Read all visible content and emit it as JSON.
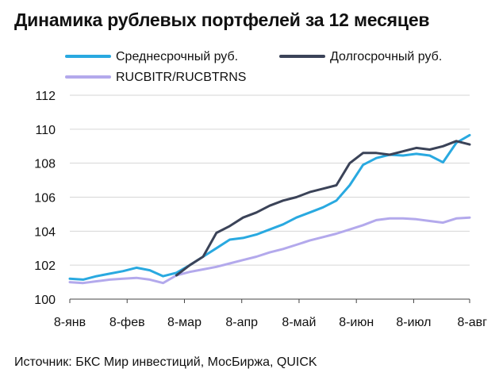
{
  "title": "Динамика рублевых портфелей за 12 месяцев",
  "source": "Источник: БКС Мир инвестиций, МосБиржа, QUICK",
  "chart_data": {
    "type": "line",
    "title": "Динамика рублевых портфелей за 12 месяцев",
    "xlabel": "",
    "ylabel": "",
    "ylim": [
      100,
      112
    ],
    "yticks": [
      100,
      102,
      104,
      106,
      108,
      110,
      112
    ],
    "xlim": [
      0,
      30
    ],
    "x_tick_positions": [
      0,
      4.3,
      8.6,
      12.9,
      17.2,
      21.5,
      25.8,
      30
    ],
    "x_tick_labels": [
      "8-янв",
      "8-фев",
      "8-мар",
      "8-апр",
      "8-май",
      "8-июн",
      "8-июл",
      "8-авг"
    ],
    "grid": "horizontal",
    "legend_position": "top",
    "series": [
      {
        "name": "Среднесрочный руб.",
        "color": "#29a9e0",
        "x": [
          0,
          1,
          2,
          3,
          4,
          5,
          6,
          7,
          8,
          9,
          10,
          11,
          12,
          13,
          14,
          15,
          16,
          17,
          18,
          19,
          20,
          21,
          22,
          23,
          24,
          25,
          26,
          27,
          28,
          29,
          30
        ],
        "values": [
          101.2,
          101.15,
          101.35,
          101.5,
          101.65,
          101.85,
          101.7,
          101.35,
          101.55,
          102.0,
          102.5,
          103.0,
          103.5,
          103.6,
          103.8,
          104.1,
          104.4,
          104.8,
          105.1,
          105.4,
          105.8,
          106.7,
          107.9,
          108.3,
          108.5,
          108.45,
          108.55,
          108.45,
          108.05,
          109.2,
          109.65
        ]
      },
      {
        "name": "Долгосрочный руб.",
        "color": "#3b4358",
        "x": [
          8,
          9,
          10,
          11,
          12,
          13,
          14,
          15,
          16,
          17,
          18,
          19,
          20,
          21,
          22,
          23,
          24,
          25,
          26,
          27,
          28,
          29,
          30
        ],
        "values": [
          101.4,
          102.0,
          102.5,
          103.9,
          104.3,
          104.8,
          105.1,
          105.5,
          105.8,
          106.0,
          106.3,
          106.5,
          106.7,
          108.0,
          108.6,
          108.6,
          108.5,
          108.7,
          108.9,
          108.8,
          109.0,
          109.3,
          109.1
        ]
      },
      {
        "name": "RUCBITR/RUCBTRNS",
        "color": "#b3a9ec",
        "x": [
          0,
          1,
          2,
          3,
          4,
          5,
          6,
          7,
          8,
          9,
          10,
          11,
          12,
          13,
          14,
          15,
          16,
          17,
          18,
          19,
          20,
          21,
          22,
          23,
          24,
          25,
          26,
          27,
          28,
          29,
          30
        ],
        "values": [
          101.0,
          100.95,
          101.05,
          101.15,
          101.2,
          101.25,
          101.15,
          100.95,
          101.4,
          101.6,
          101.75,
          101.9,
          102.1,
          102.3,
          102.5,
          102.75,
          102.95,
          103.2,
          103.45,
          103.65,
          103.85,
          104.1,
          104.35,
          104.65,
          104.75,
          104.75,
          104.7,
          104.6,
          104.5,
          104.75,
          104.8
        ]
      }
    ]
  }
}
